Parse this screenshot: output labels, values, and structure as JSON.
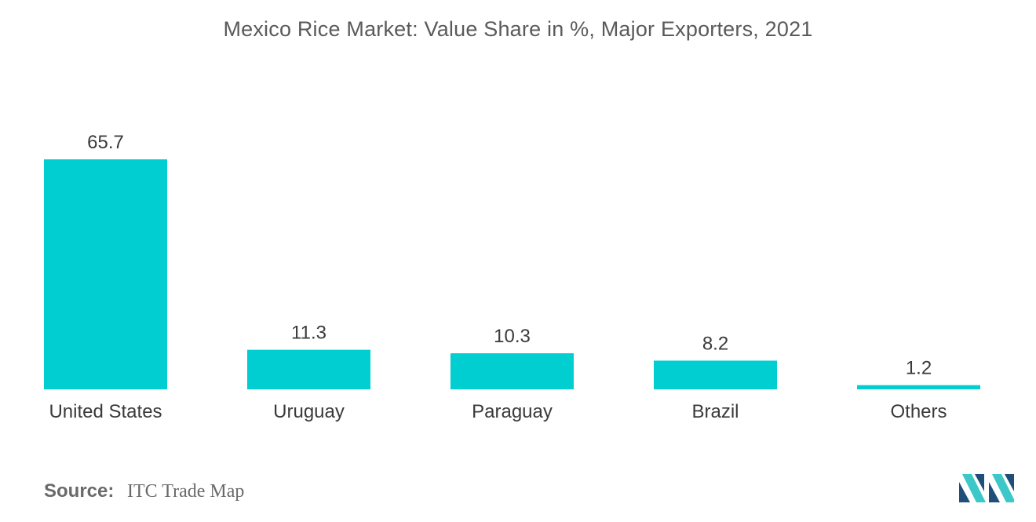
{
  "chart_data": {
    "type": "bar",
    "title": "Mexico Rice Market: Value Share in %, Major Exporters, 2021",
    "categories": [
      "United States",
      "Uruguay",
      "Paraguay",
      "Brazil",
      "Others"
    ],
    "values": [
      65.7,
      11.3,
      10.3,
      8.2,
      1.2
    ],
    "data_labels": [
      "65.7",
      "11.3",
      "10.3",
      "8.2",
      "1.2"
    ],
    "xlabel": "",
    "ylabel": "",
    "ylim": [
      0,
      65.7
    ],
    "grid": false,
    "legend": "none",
    "bar_color": "#00CED1"
  },
  "source": {
    "label": "Source:",
    "value": "ITC Trade Map"
  },
  "logo": {
    "icon": "mordor-intelligence-logo-icon",
    "color_dark": "#1F4E79",
    "color_light": "#3CC8C8"
  }
}
